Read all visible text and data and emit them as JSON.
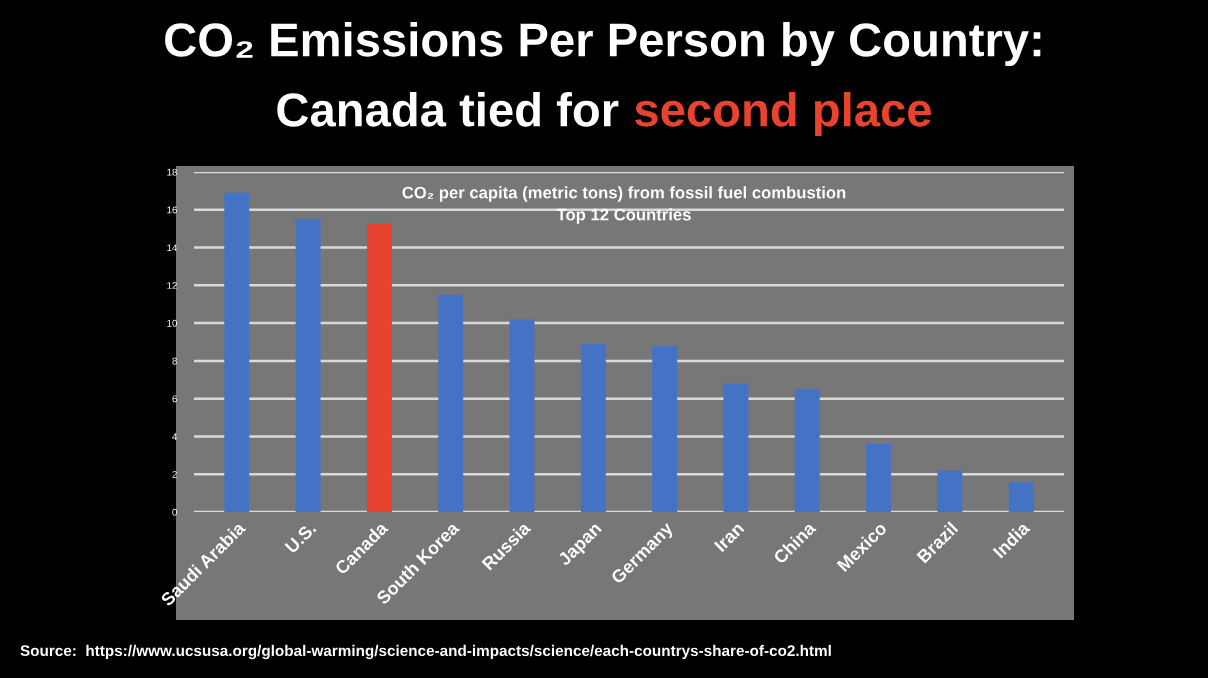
{
  "chart_data": {
    "type": "bar",
    "title": "CO₂ Emissions Per Person by Country:",
    "subtitle": "Canada tied for",
    "annotations": [
      "second place",
      "CO₂ per capita (metric tons) from fossil fuel combustion",
      "Top 12 Countries",
      "Source:  https://www.ucsusa.org/global-warming/science-and-impacts/science/each-countrys-share-of-co2.html"
    ],
    "categories": [
      "Saudi Arabia",
      "U.S.",
      "Canada",
      "South Korea",
      "Russia",
      "Japan",
      "Germany",
      "Iran",
      "China",
      "Mexico",
      "Brazil",
      "India"
    ],
    "values": [
      16.9,
      15.5,
      15.3,
      11.5,
      10.2,
      8.9,
      8.8,
      6.8,
      6.5,
      3.6,
      2.2,
      1.6
    ],
    "colors": [
      "#4472c4",
      "#4472c4",
      "#e8432f",
      "#4472c4",
      "#4472c4",
      "#4472c4",
      "#4472c4",
      "#4472c4",
      "#4472c4",
      "#4472c4",
      "#4472c4",
      "#4472c4"
    ],
    "ylim": [
      0,
      18
    ],
    "yticks": [
      0,
      2,
      4,
      6,
      8,
      10,
      12,
      14,
      16,
      18
    ],
    "grid": "y"
  }
}
